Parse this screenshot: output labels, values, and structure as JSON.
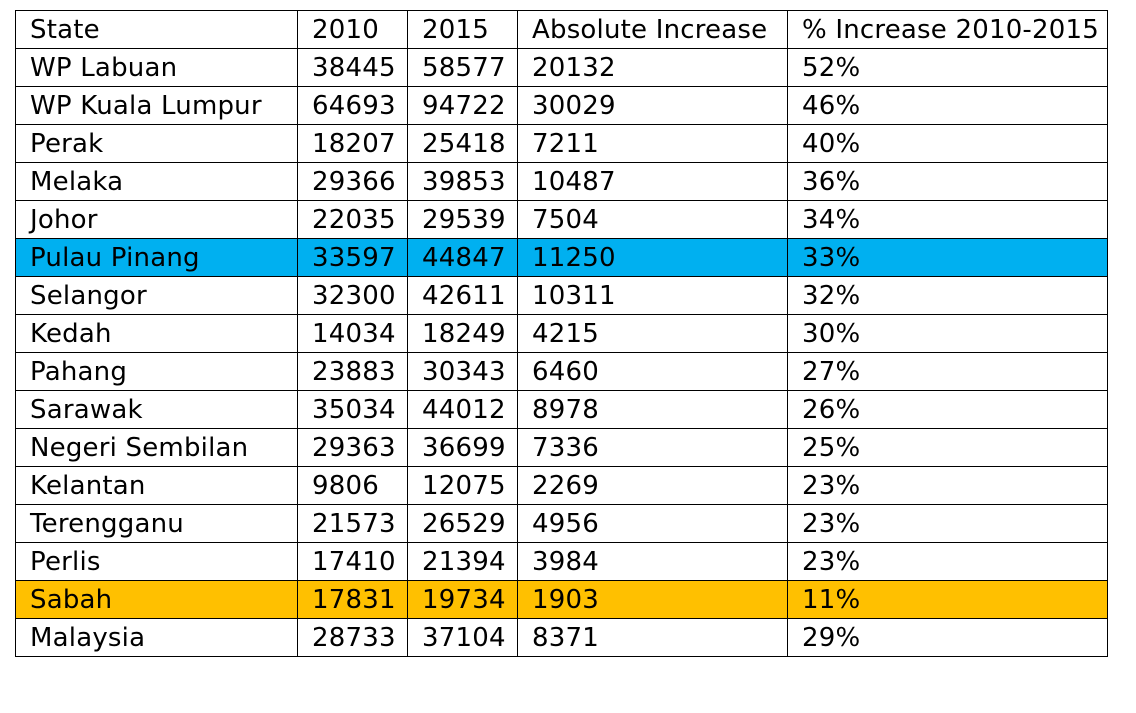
{
  "chart_data": {
    "type": "table",
    "columns": [
      "State",
      "2010",
      "2015",
      "Absolute Increase",
      "% Increase 2010-2015"
    ],
    "rows": [
      {
        "state": "WP Labuan",
        "y2010": "38445",
        "y2015": "58577",
        "abs": "20132",
        "pct": "52%"
      },
      {
        "state": "WP Kuala Lumpur",
        "y2010": "64693",
        "y2015": "94722",
        "abs": "30029",
        "pct": "46%"
      },
      {
        "state": "Perak",
        "y2010": "18207",
        "y2015": "25418",
        "abs": "7211",
        "pct": "40%"
      },
      {
        "state": "Melaka",
        "y2010": "29366",
        "y2015": "39853",
        "abs": "10487",
        "pct": "36%"
      },
      {
        "state": "Johor",
        "y2010": "22035",
        "y2015": "29539",
        "abs": "7504",
        "pct": "34%"
      },
      {
        "state": "Pulau Pinang",
        "y2010": "33597",
        "y2015": "44847",
        "abs": "11250",
        "pct": "33%",
        "highlight": "#00b0f0"
      },
      {
        "state": "Selangor",
        "y2010": "32300",
        "y2015": "42611",
        "abs": "10311",
        "pct": "32%"
      },
      {
        "state": "Kedah",
        "y2010": "14034",
        "y2015": "18249",
        "abs": "4215",
        "pct": "30%"
      },
      {
        "state": "Pahang",
        "y2010": "23883",
        "y2015": "30343",
        "abs": "6460",
        "pct": "27%"
      },
      {
        "state": "Sarawak",
        "y2010": "35034",
        "y2015": "44012",
        "abs": "8978",
        "pct": "26%"
      },
      {
        "state": "Negeri Sembilan",
        "y2010": "29363",
        "y2015": "36699",
        "abs": "7336",
        "pct": "25%"
      },
      {
        "state": "Kelantan",
        "y2010": "9806",
        "y2015": "12075",
        "abs": "2269",
        "pct": "23%"
      },
      {
        "state": "Terengganu",
        "y2010": "21573",
        "y2015": "26529",
        "abs": "4956",
        "pct": "23%"
      },
      {
        "state": "Perlis",
        "y2010": "17410",
        "y2015": "21394",
        "abs": "3984",
        "pct": "23%"
      },
      {
        "state": "Sabah",
        "y2010": "17831",
        "y2015": "19734",
        "abs": "1903",
        "pct": "11%",
        "highlight": "#ffc000"
      },
      {
        "state": "Malaysia",
        "y2010": "28733",
        "y2015": "37104",
        "abs": "8371",
        "pct": "29%"
      }
    ]
  }
}
